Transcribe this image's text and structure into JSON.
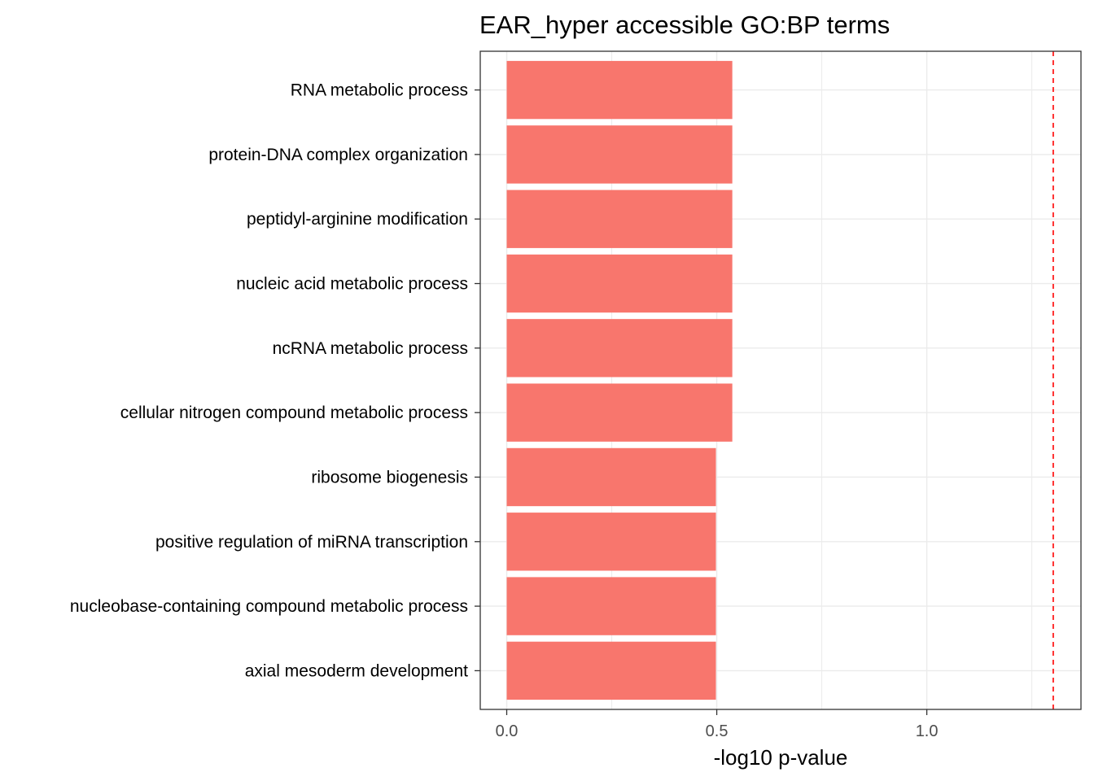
{
  "chart_data": {
    "type": "bar",
    "orientation": "horizontal",
    "title": "EAR_hyper accessible GO:BP terms",
    "xlabel": "-log10 p-value",
    "ylabel": "",
    "categories": [
      "RNA metabolic process",
      "protein-DNA complex organization",
      "peptidyl-arginine modification",
      "nucleic acid metabolic process",
      "ncRNA metabolic process",
      "cellular nitrogen compound metabolic process",
      "ribosome biogenesis",
      "positive regulation of miRNA transcription",
      "nucleobase-containing compound metabolic process",
      "axial mesoderm development"
    ],
    "values": [
      0.537,
      0.537,
      0.537,
      0.537,
      0.537,
      0.537,
      0.498,
      0.498,
      0.498,
      0.498
    ],
    "xlim": [
      -0.063,
      1.367
    ],
    "xticks": [
      0.0,
      0.5,
      1.0
    ],
    "xtick_labels": [
      "0.0",
      "0.5",
      "1.0"
    ],
    "threshold_line": {
      "value": 1.301,
      "style": "dashed",
      "color": "#ff0000"
    },
    "bar_color": "#F8766D",
    "grid": true,
    "legend": "none"
  }
}
